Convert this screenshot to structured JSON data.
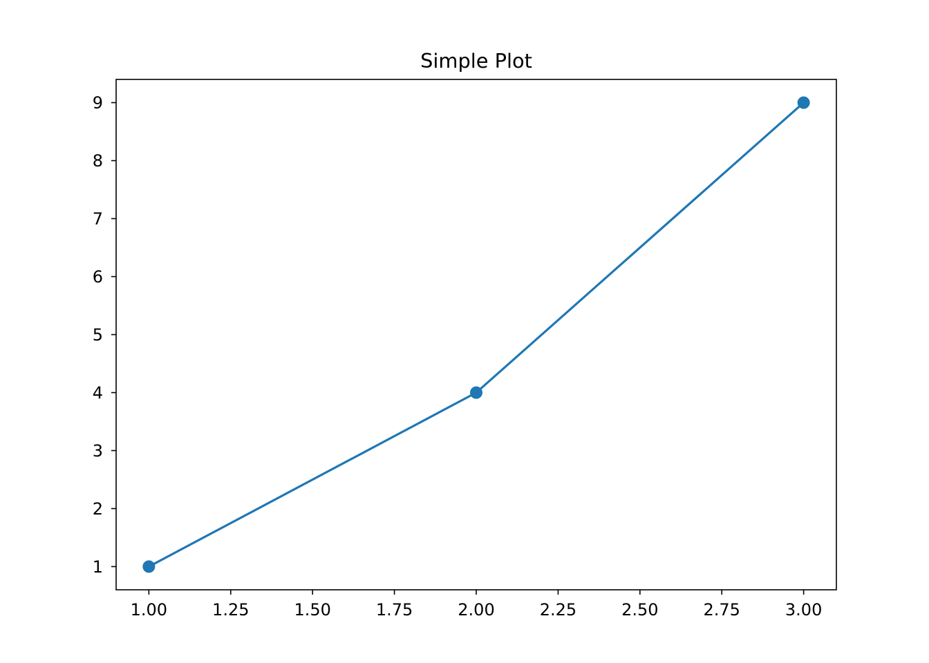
{
  "chart_data": {
    "type": "line",
    "title": "Simple Plot",
    "xlabel": "",
    "ylabel": "",
    "x": [
      1,
      2,
      3
    ],
    "series": [
      {
        "values": [
          1,
          4,
          9
        ]
      }
    ],
    "xlim": [
      0.9,
      3.1
    ],
    "ylim": [
      0.6,
      9.4
    ],
    "xticks": [
      "1.00",
      "1.25",
      "1.50",
      "1.75",
      "2.00",
      "2.25",
      "2.50",
      "2.75",
      "3.00"
    ],
    "yticks": [
      "1",
      "2",
      "3",
      "4",
      "5",
      "6",
      "7",
      "8",
      "9"
    ],
    "markers": true,
    "grid": false,
    "legend": "none",
    "colors": {
      "series": "#1f77b4",
      "axes": "#000000",
      "background": "#ffffff"
    }
  }
}
